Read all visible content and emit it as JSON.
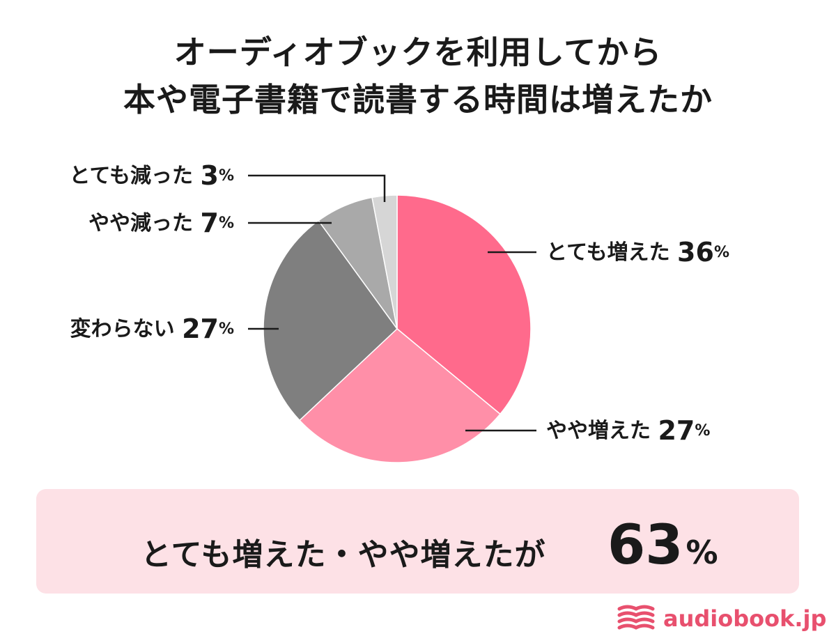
{
  "title": {
    "line1": "オーディオブックを利用してから",
    "line2": "本や電子書籍で読書する時間は増えたか"
  },
  "chart_data": {
    "type": "pie",
    "slices": [
      {
        "label": "とても増えた",
        "value": 36,
        "color": "#ff6a8c"
      },
      {
        "label": "やや増えた",
        "value": 27,
        "color": "#ff8fa8"
      },
      {
        "label": "変わらない",
        "value": 27,
        "color": "#7f7f7f"
      },
      {
        "label": "やや減った",
        "value": 7,
        "color": "#a9a9a9"
      },
      {
        "label": "とても減った",
        "value": 3,
        "color": "#d6d6d6"
      }
    ],
    "unit": "%"
  },
  "summary": {
    "text": "とても増えた・やや増えたが",
    "value": "63",
    "unit": "%"
  },
  "brand": {
    "name": "audiobook.jp",
    "color": "#e8506e"
  }
}
